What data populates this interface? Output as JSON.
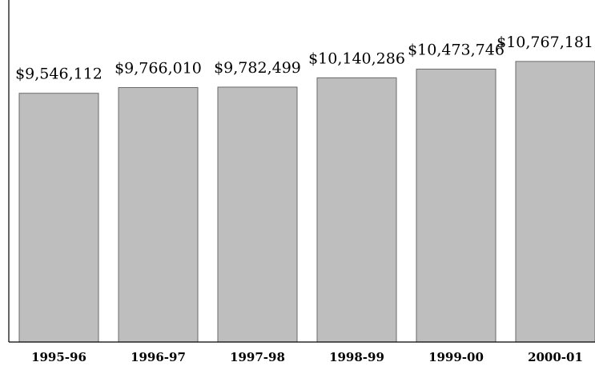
{
  "chart_data": {
    "type": "bar",
    "categories": [
      "1995-96",
      "1996-97",
      "1997-98",
      "1998-99",
      "1999-00",
      "2000-01"
    ],
    "values": [
      9546112,
      9766010,
      9782499,
      10140286,
      10473746,
      10767181
    ],
    "value_labels": [
      "$9,546,112",
      "$9,766,010",
      "$9,782,499",
      "$10,140,286",
      "$10,473,746",
      "$10,767,181"
    ],
    "title": "",
    "xlabel": "",
    "ylabel": "",
    "ylim": [
      0,
      11500000
    ],
    "grid": false,
    "legend": "none",
    "colors": {
      "bar_fill": "#bebebe",
      "bar_stroke": "#6a6a6a",
      "axis": "#000000"
    }
  }
}
